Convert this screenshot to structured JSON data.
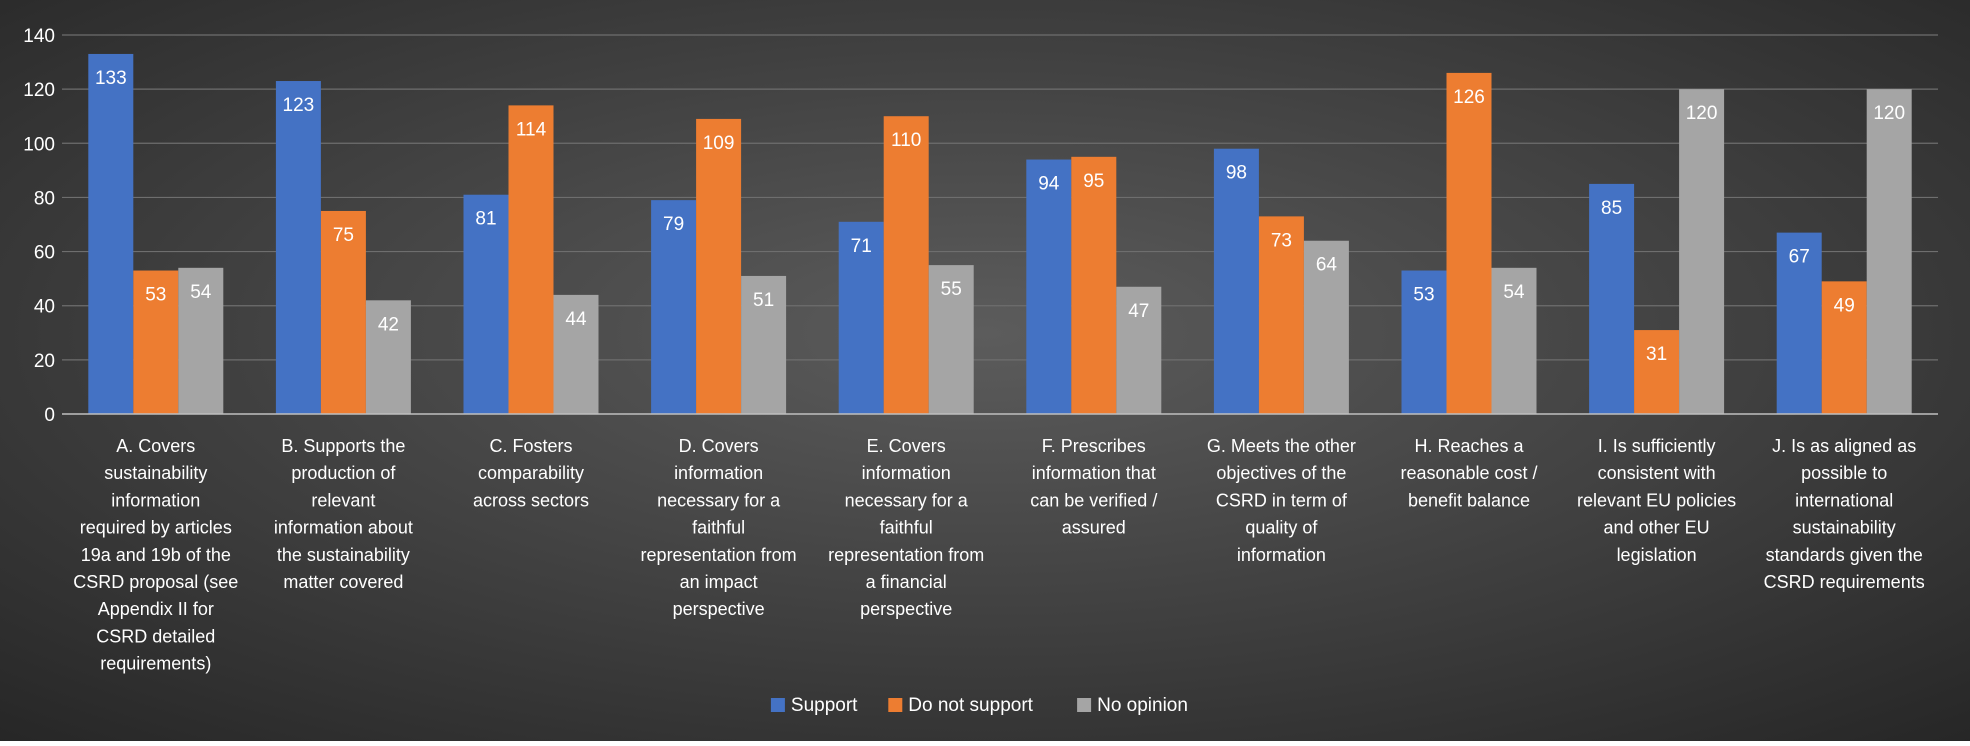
{
  "colors": {
    "background_center": "#5c5c5c",
    "background_edge": "#262626",
    "grid": "#6e6e6e",
    "axis": "#bfbfbf",
    "text": "#ffffff",
    "support": "#4472c4",
    "do_not_support": "#ed7d31",
    "no_opinion": "#a5a5a5"
  },
  "chart_data": {
    "type": "bar",
    "title": "",
    "xlabel": "",
    "ylabel": "",
    "ylim": [
      0,
      140
    ],
    "yticks": [
      "0",
      "20",
      "40",
      "60",
      "80",
      "100",
      "120",
      "140"
    ],
    "grid": true,
    "legend_position": "bottom",
    "categories": [
      "A. Covers sustainability information required by articles 19a and 19b of the CSRD proposal (see Appendix II for CSRD detailed requirements)",
      "B. Supports the production of relevant information about the sustainability matter covered",
      "C. Fosters comparability across sectors",
      "D. Covers information necessary for a faithful representation from an impact perspective",
      "E. Covers information necessary for a faithful representation from a financial perspective",
      "F. Prescribes information that can be verified / assured",
      "G. Meets the other objectives of the CSRD in term of quality of information",
      "H. Reaches a reasonable cost / benefit balance",
      "I. Is sufficiently consistent with relevant EU policies and other EU legislation",
      "J. Is as aligned as possible to international sustainability standards given the CSRD requirements"
    ],
    "category_lines": [
      [
        "A. Covers",
        "sustainability",
        "information",
        "required by articles",
        "19a and 19b of the",
        "CSRD proposal (see",
        "Appendix II for",
        "CSRD detailed",
        "requirements)"
      ],
      [
        "B. Supports the",
        "production of",
        "relevant",
        "information about",
        "the sustainability",
        "matter covered"
      ],
      [
        "C. Fosters",
        "comparability",
        "across sectors"
      ],
      [
        "D. Covers",
        "information",
        "necessary for a",
        "faithful",
        "representation from",
        "an impact",
        "perspective"
      ],
      [
        "E. Covers",
        "information",
        "necessary for a",
        "faithful",
        "representation from",
        "a financial",
        "perspective"
      ],
      [
        "F. Prescribes",
        "information that",
        "can be verified /",
        "assured"
      ],
      [
        "G. Meets the other",
        "objectives of the",
        "CSRD in term of",
        "quality of",
        "information"
      ],
      [
        "H. Reaches a",
        "reasonable cost /",
        "benefit balance"
      ],
      [
        "I. Is sufficiently",
        "consistent with",
        "relevant EU policies",
        "and other EU",
        "legislation"
      ],
      [
        "J. Is as aligned as",
        "possible to",
        "international",
        "sustainability",
        "standards given the",
        "CSRD requirements"
      ]
    ],
    "series": [
      {
        "name": "Support",
        "color": "#4472c4",
        "values": [
          133,
          123,
          81,
          79,
          71,
          94,
          98,
          53,
          85,
          67
        ]
      },
      {
        "name": "Do not support",
        "color": "#ed7d31",
        "values": [
          53,
          75,
          114,
          109,
          110,
          95,
          73,
          126,
          31,
          49
        ]
      },
      {
        "name": "No opinion",
        "color": "#a5a5a5",
        "values": [
          54,
          42,
          44,
          51,
          55,
          47,
          64,
          54,
          120,
          120
        ]
      }
    ]
  }
}
